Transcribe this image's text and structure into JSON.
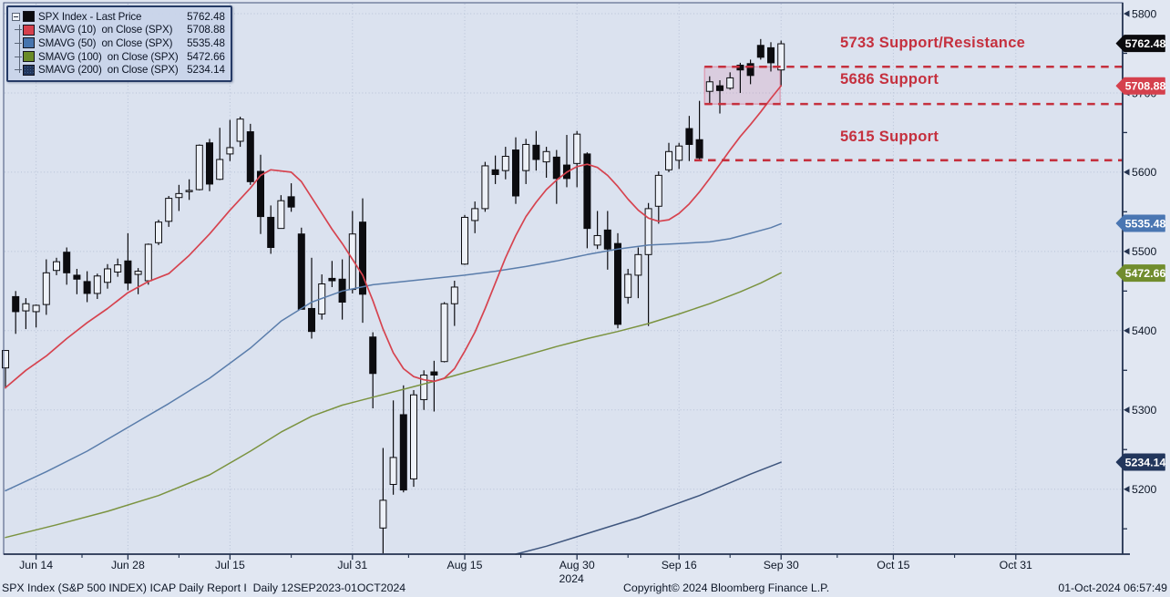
{
  "legend": {
    "items": [
      {
        "label": "SPX Index - Last Price",
        "value": "5762.48",
        "color": "#0b0b0e",
        "texture": "solid"
      },
      {
        "label": "SMAVG (10)  on Close (SPX)",
        "value": "5708.88",
        "color": "#d6404d",
        "texture": "solid"
      },
      {
        "label": "SMAVG (50)  on Close (SPX)",
        "value": "5535.48",
        "color": "#4674ae",
        "texture": "solid"
      },
      {
        "label": "SMAVG (100)  on Close (SPX)",
        "value": "5472.66",
        "color": "#6a8b28",
        "texture": "solid"
      },
      {
        "label": "SMAVG (200)  on Close (SPX)",
        "value": "5234.14",
        "color": "#22365c",
        "texture": "dots"
      }
    ]
  },
  "footer": {
    "left": "SPX Index (S&P 500 INDEX) ICAP Daily Report I  Daily 12SEP2023-01OCT2024",
    "center": "Copyright© 2024 Bloomberg Finance L.P.",
    "right": "01-Oct-2024 06:57:49"
  },
  "chart_data": {
    "type": "candlestick",
    "title": "SPX Index - Last Price",
    "ylim": [
      5118,
      5813
    ],
    "grid": true,
    "y_ticks": [
      5800,
      5700,
      5600,
      5500,
      5400,
      5300,
      5200
    ],
    "y_minor_ticks": [
      5750,
      5650,
      5550,
      5450,
      5350,
      5250,
      5150
    ],
    "x_ticks": [
      {
        "label": "Jun 14",
        "i": 3
      },
      {
        "label": "Jun 28",
        "i": 12
      },
      {
        "label": "Jul 15",
        "i": 22
      },
      {
        "label": "Jul 31",
        "i": 34
      },
      {
        "label": "Aug 15",
        "i": 45
      },
      {
        "label": "Aug 30",
        "i": 56,
        "sublabel": "2024"
      },
      {
        "label": "Sep 16",
        "i": 66
      },
      {
        "label": "Sep 30",
        "i": 76
      },
      {
        "label": "Oct 15",
        "i": 87
      },
      {
        "label": "Oct 31",
        "i": 99
      }
    ],
    "candles": [
      [
        5353,
        5375,
        5327,
        5375
      ],
      [
        5443,
        5450,
        5396,
        5424
      ],
      [
        5425,
        5441,
        5402,
        5434
      ],
      [
        5424,
        5433,
        5404,
        5432
      ],
      [
        5433,
        5490,
        5420,
        5473
      ],
      [
        5476,
        5492,
        5470,
        5487
      ],
      [
        5499,
        5505,
        5458,
        5473
      ],
      [
        5470,
        5478,
        5446,
        5465
      ],
      [
        5462,
        5475,
        5436,
        5447
      ],
      [
        5447,
        5472,
        5440,
        5469
      ],
      [
        5461,
        5484,
        5453,
        5478
      ],
      [
        5474,
        5491,
        5468,
        5483
      ],
      [
        5488,
        5523,
        5451,
        5460
      ],
      [
        5471,
        5479,
        5446,
        5475
      ],
      [
        5463,
        5510,
        5458,
        5509
      ],
      [
        5511,
        5540,
        5508,
        5537
      ],
      [
        5538,
        5570,
        5531,
        5567
      ],
      [
        5568,
        5584,
        5551,
        5573
      ],
      [
        5577,
        5591,
        5565,
        5577
      ],
      [
        5578,
        5635,
        5577,
        5634
      ],
      [
        5637,
        5642,
        5576,
        5585
      ],
      [
        5591,
        5656,
        5590,
        5616
      ],
      [
        5623,
        5666,
        5614,
        5631
      ],
      [
        5639,
        5670,
        5632,
        5667
      ],
      [
        5651,
        5661,
        5584,
        5588
      ],
      [
        5601,
        5622,
        5522,
        5544
      ],
      [
        5543,
        5558,
        5497,
        5505
      ],
      [
        5529,
        5571,
        5529,
        5564
      ],
      [
        5569,
        5586,
        5550,
        5556
      ],
      [
        5522,
        5530,
        5440,
        5427
      ],
      [
        5428,
        5492,
        5390,
        5399
      ],
      [
        5421,
        5471,
        5414,
        5459
      ],
      [
        5466,
        5488,
        5455,
        5463
      ],
      [
        5465,
        5490,
        5414,
        5436
      ],
      [
        5452,
        5551,
        5447,
        5522
      ],
      [
        5537,
        5567,
        5410,
        5446
      ],
      [
        5392,
        5398,
        5302,
        5346
      ],
      [
        5151,
        5252,
        5119,
        5186
      ],
      [
        5206,
        5312,
        5193,
        5240
      ],
      [
        5294,
        5331,
        5196,
        5199
      ],
      [
        5213,
        5325,
        5203,
        5319
      ],
      [
        5313,
        5350,
        5300,
        5344
      ],
      [
        5348,
        5362,
        5298,
        5344
      ],
      [
        5361,
        5436,
        5360,
        5434
      ],
      [
        5434,
        5463,
        5406,
        5455
      ],
      [
        5484,
        5546,
        5483,
        5543
      ],
      [
        5539,
        5563,
        5523,
        5554
      ],
      [
        5554,
        5613,
        5550,
        5608
      ],
      [
        5603,
        5621,
        5585,
        5597
      ],
      [
        5602,
        5632,
        5591,
        5620
      ],
      [
        5628,
        5644,
        5560,
        5570
      ],
      [
        5602,
        5642,
        5585,
        5635
      ],
      [
        5634,
        5652,
        5602,
        5616
      ],
      [
        5613,
        5632,
        5593,
        5626
      ],
      [
        5619,
        5628,
        5560,
        5592
      ],
      [
        5609,
        5647,
        5581,
        5592
      ],
      [
        5611,
        5652,
        5581,
        5648
      ],
      [
        5623,
        5625,
        5504,
        5529
      ],
      [
        5508,
        5551,
        5503,
        5520
      ],
      [
        5527,
        5551,
        5477,
        5503
      ],
      [
        5510,
        5523,
        5403,
        5408
      ],
      [
        5442,
        5478,
        5434,
        5471
      ],
      [
        5470,
        5505,
        5441,
        5496
      ],
      [
        5496,
        5561,
        5406,
        5554
      ],
      [
        5557,
        5601,
        5535,
        5596
      ],
      [
        5603,
        5637,
        5600,
        5626
      ],
      [
        5615,
        5637,
        5604,
        5633
      ],
      [
        5655,
        5671,
        5614,
        5635
      ],
      [
        5641,
        5690,
        5615,
        5618
      ],
      [
        5702,
        5721,
        5686,
        5714
      ],
      [
        5709,
        5716,
        5674,
        5703
      ],
      [
        5706,
        5726,
        5704,
        5719
      ],
      [
        5735,
        5738,
        5700,
        5729
      ],
      [
        5737,
        5742,
        5711,
        5722
      ],
      [
        5760,
        5768,
        5742,
        5745
      ],
      [
        5757,
        5764,
        5727,
        5738
      ],
      [
        5729,
        5766,
        5708,
        5762
      ]
    ],
    "ma_series": [
      {
        "id": "smavg-200-line",
        "name": "SMAVG (200) on Close (SPX)",
        "color": "#3f567e",
        "width": 1.5,
        "points": [
          [
            50,
            5118
          ],
          [
            53,
            5128
          ],
          [
            56,
            5140
          ],
          [
            59,
            5152
          ],
          [
            62,
            5164
          ],
          [
            65,
            5178
          ],
          [
            68,
            5192
          ],
          [
            71,
            5208
          ],
          [
            73,
            5219
          ],
          [
            76,
            5234
          ]
        ]
      },
      {
        "id": "smavg-100-line",
        "name": "SMAVG (100) on Close (SPX)",
        "color": "#7b9340",
        "width": 1.5,
        "points": [
          [
            0,
            5139
          ],
          [
            5,
            5155
          ],
          [
            10,
            5172
          ],
          [
            15,
            5192
          ],
          [
            20,
            5218
          ],
          [
            24,
            5248
          ],
          [
            27,
            5272
          ],
          [
            30,
            5292
          ],
          [
            33,
            5306
          ],
          [
            36,
            5316
          ],
          [
            39,
            5326
          ],
          [
            42,
            5336
          ],
          [
            45,
            5347
          ],
          [
            48,
            5358
          ],
          [
            51,
            5369
          ],
          [
            54,
            5380
          ],
          [
            57,
            5390
          ],
          [
            60,
            5399
          ],
          [
            63,
            5409
          ],
          [
            66,
            5421
          ],
          [
            69,
            5434
          ],
          [
            72,
            5449
          ],
          [
            74,
            5460
          ],
          [
            76,
            5473
          ]
        ]
      },
      {
        "id": "smavg-50-line",
        "name": "SMAVG (50) on Close (SPX)",
        "color": "#5a7dab",
        "width": 1.5,
        "points": [
          [
            0,
            5198
          ],
          [
            4,
            5222
          ],
          [
            8,
            5248
          ],
          [
            12,
            5278
          ],
          [
            16,
            5308
          ],
          [
            20,
            5340
          ],
          [
            24,
            5378
          ],
          [
            27,
            5412
          ],
          [
            30,
            5436
          ],
          [
            33,
            5450
          ],
          [
            36,
            5458
          ],
          [
            39,
            5462
          ],
          [
            42,
            5466
          ],
          [
            45,
            5470
          ],
          [
            48,
            5475
          ],
          [
            51,
            5481
          ],
          [
            54,
            5488
          ],
          [
            57,
            5496
          ],
          [
            60,
            5503
          ],
          [
            63,
            5508
          ],
          [
            66,
            5510
          ],
          [
            69,
            5512
          ],
          [
            71,
            5516
          ],
          [
            73,
            5523
          ],
          [
            75,
            5530
          ],
          [
            76,
            5535
          ]
        ]
      },
      {
        "id": "smavg-10-line",
        "name": "SMAVG (10) on Close (SPX)",
        "color": "#d6434f",
        "width": 1.7,
        "points": [
          [
            0,
            5328
          ],
          [
            2,
            5350
          ],
          [
            4,
            5368
          ],
          [
            6,
            5390
          ],
          [
            8,
            5410
          ],
          [
            10,
            5428
          ],
          [
            12,
            5448
          ],
          [
            14,
            5462
          ],
          [
            16,
            5472
          ],
          [
            18,
            5495
          ],
          [
            20,
            5522
          ],
          [
            22,
            5552
          ],
          [
            24,
            5580
          ],
          [
            25,
            5596
          ],
          [
            26,
            5603
          ],
          [
            28,
            5600
          ],
          [
            29,
            5588
          ],
          [
            30,
            5568
          ],
          [
            31,
            5548
          ],
          [
            32,
            5528
          ],
          [
            33,
            5510
          ],
          [
            34,
            5490
          ],
          [
            35,
            5470
          ],
          [
            36,
            5438
          ],
          [
            37,
            5402
          ],
          [
            38,
            5372
          ],
          [
            39,
            5352
          ],
          [
            40,
            5342
          ],
          [
            41,
            5338
          ],
          [
            42,
            5336
          ],
          [
            43,
            5340
          ],
          [
            44,
            5352
          ],
          [
            45,
            5374
          ],
          [
            46,
            5398
          ],
          [
            47,
            5428
          ],
          [
            48,
            5460
          ],
          [
            49,
            5492
          ],
          [
            50,
            5520
          ],
          [
            51,
            5544
          ],
          [
            52,
            5562
          ],
          [
            53,
            5578
          ],
          [
            54,
            5590
          ],
          [
            55,
            5600
          ],
          [
            56,
            5607
          ],
          [
            57,
            5610
          ],
          [
            58,
            5606
          ],
          [
            59,
            5596
          ],
          [
            60,
            5582
          ],
          [
            61,
            5566
          ],
          [
            62,
            5552
          ],
          [
            63,
            5542
          ],
          [
            64,
            5538
          ],
          [
            65,
            5540
          ],
          [
            66,
            5548
          ],
          [
            67,
            5560
          ],
          [
            68,
            5575
          ],
          [
            69,
            5592
          ],
          [
            70,
            5610
          ],
          [
            71,
            5628
          ],
          [
            72,
            5645
          ],
          [
            73,
            5660
          ],
          [
            74,
            5676
          ],
          [
            75,
            5693
          ],
          [
            76,
            5709
          ]
        ]
      }
    ],
    "support_lines": [
      {
        "label": "5733 Support/Resistance",
        "price": 5733,
        "start_i": 68.5,
        "label_x": 922,
        "label_y": 52
      },
      {
        "label": "5686 Support",
        "price": 5686,
        "start_i": 68.5,
        "label_x": 922,
        "label_y": 92
      },
      {
        "label": "5615 Support",
        "price": 5615,
        "start_i": 67.5,
        "label_x": 922,
        "label_y": 155
      }
    ],
    "consolidation_box": {
      "i_start": 68.5,
      "i_end": 75.9,
      "price_top": 5733,
      "price_bottom": 5686
    },
    "price_badges": [
      {
        "value": "5762.48",
        "price": 5762.48,
        "color": "#0b0b0e"
      },
      {
        "value": "5708.88",
        "price": 5708.88,
        "color": "#d5404d"
      },
      {
        "value": "5535.48",
        "price": 5535.48,
        "color": "#4a76b2"
      },
      {
        "value": "5472.66",
        "price": 5472.66,
        "color": "#718d2e"
      },
      {
        "value": "5234.14",
        "price": 5234.14,
        "color": "#22365c"
      }
    ],
    "colors": {
      "up_candle": "#edf1f8",
      "down_candle": "#0c0c10",
      "grid": "#b7c1d6",
      "axis": "#23324f",
      "support": "#c5303e",
      "box_fill": "rgba(214,125,158,0.20)",
      "box_edge": "#dc95ad",
      "plot_bg": "#dbe2ef",
      "text": "#0d1626"
    }
  }
}
